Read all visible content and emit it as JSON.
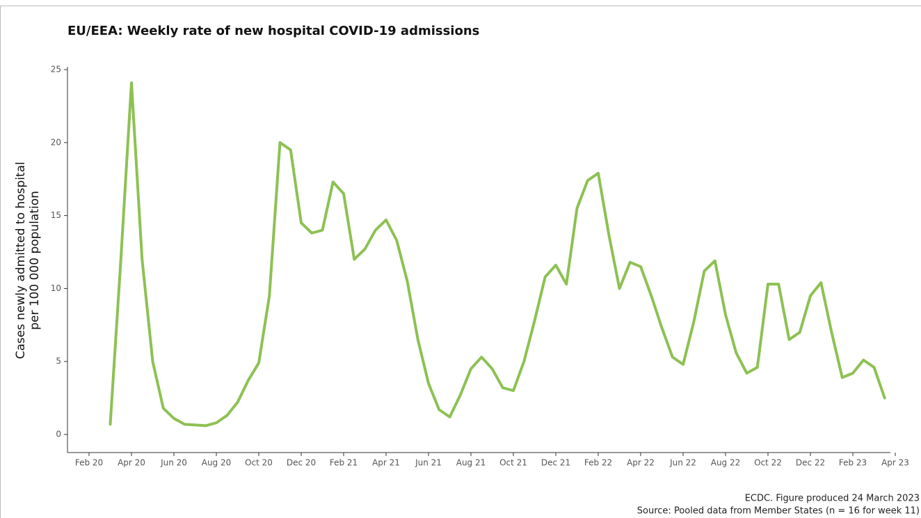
{
  "chart_data": {
    "type": "line",
    "title": "EU/EEA: Weekly rate of new hospital COVID-19 admissions",
    "ylabel": [
      "Cases newly admitted to hospital",
      "per 100 000 population"
    ],
    "footnotes": [
      "ECDC. Figure produced 24 March 2023",
      "Source: Pooled data from Member States (n = 16 for week 11)"
    ],
    "categories": [
      "Feb 20",
      null,
      null,
      null,
      "Apr 20",
      null,
      null,
      null,
      "Jun 20",
      null,
      null,
      null,
      "Aug 20",
      null,
      null,
      null,
      "Oct 20",
      null,
      null,
      null,
      "Dec 20",
      null,
      null,
      null,
      "Feb 21",
      null,
      null,
      null,
      "Apr 21",
      null,
      null,
      null,
      "Jun 21",
      null,
      null,
      null,
      "Aug 21",
      null,
      null,
      null,
      "Oct 21",
      null,
      null,
      null,
      "Dec 21",
      null,
      null,
      null,
      "Feb 22",
      null,
      null,
      null,
      "Apr 22",
      null,
      null,
      null,
      "Jun 22",
      null,
      null,
      null,
      "Aug 22",
      null,
      null,
      null,
      "Oct 22",
      null,
      null,
      null,
      "Dec 22",
      null,
      null,
      null,
      "Feb 23",
      null,
      null,
      null,
      "Apr 23"
    ],
    "series": [
      {
        "name": "Weekly rate",
        "color": "#8dc153",
        "values": [
          null,
          null,
          0.7,
          12,
          24.1,
          12,
          5,
          1.8,
          1.1,
          0.7,
          0.65,
          0.6,
          0.8,
          1.3,
          2.2,
          3.7,
          4.9,
          9.5,
          20,
          19.5,
          14.5,
          13.8,
          14,
          17.3,
          16.5,
          12,
          12.7,
          14,
          14.7,
          13.3,
          10.5,
          6.5,
          3.5,
          1.7,
          1.2,
          2.7,
          4.5,
          5.3,
          4.5,
          3.2,
          3.0,
          5,
          7.8,
          10.8,
          11.6,
          10.3,
          15.5,
          17.4,
          17.9,
          13.7,
          10,
          11.8,
          11.5,
          9.5,
          7.3,
          5.3,
          4.8,
          7.7,
          11.2,
          11.9,
          8.2,
          5.6,
          4.2,
          4.6,
          10.3,
          10.3,
          6.5,
          7,
          9.5,
          10.4,
          7,
          3.9,
          4.2,
          5.1,
          4.6,
          2.5,
          null
        ]
      }
    ],
    "ylim": [
      0,
      25
    ],
    "yticks": [
      0,
      5,
      10,
      15,
      20,
      25
    ],
    "grid": false
  }
}
